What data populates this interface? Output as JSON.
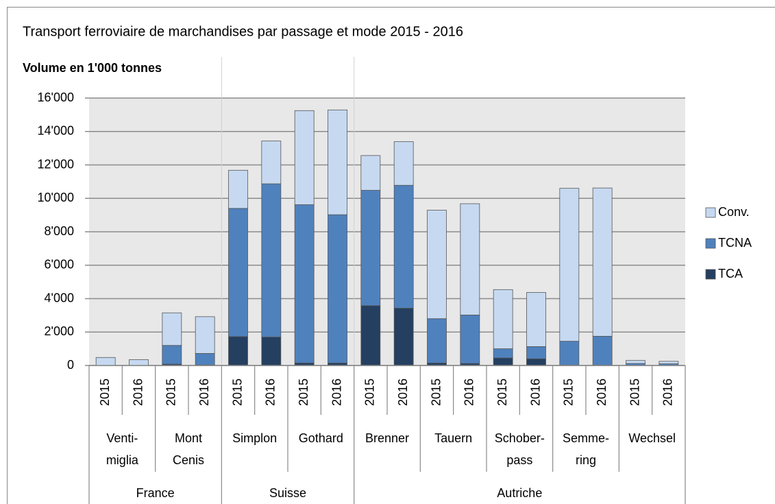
{
  "chart_data": {
    "type": "stacked_bar",
    "title": "Transport ferroviaire de marchandises par passage et mode 2015 - 2016",
    "subtitle": "Volume en 1'000 tonnes",
    "groups": [
      {
        "label": "France",
        "subgroups": [
          {
            "label": [
              "Venti-",
              "miglia"
            ],
            "categories": [
              "2015",
              "2016"
            ]
          },
          {
            "label": [
              "Mont",
              "Cenis"
            ],
            "categories": [
              "2015",
              "2016"
            ]
          }
        ]
      },
      {
        "label": "Suisse",
        "subgroups": [
          {
            "label": [
              "Simplon"
            ],
            "categories": [
              "2015",
              "2016"
            ]
          },
          {
            "label": [
              "Gothard"
            ],
            "categories": [
              "2015",
              "2016"
            ]
          }
        ]
      },
      {
        "label": "Autriche",
        "subgroups": [
          {
            "label": [
              "Brenner"
            ],
            "categories": [
              "2015",
              "2016"
            ]
          },
          {
            "label": [
              "Tauern"
            ],
            "categories": [
              "2015",
              "2016"
            ]
          },
          {
            "label": [
              "Schober-",
              "pass"
            ],
            "categories": [
              "2015",
              "2016"
            ]
          },
          {
            "label": [
              "Semme-",
              "ring"
            ],
            "categories": [
              "2015",
              "2016"
            ]
          },
          {
            "label": [
              "Wechsel"
            ],
            "categories": [
              "2015",
              "2016"
            ]
          }
        ]
      }
    ],
    "series": [
      {
        "name": "TCA",
        "color": "#243f60",
        "values": [
          0,
          0,
          80,
          30,
          1730,
          1700,
          150,
          150,
          3580,
          3430,
          150,
          120,
          450,
          400,
          20,
          20,
          0,
          0
        ]
      },
      {
        "name": "TCNA",
        "color": "#4f81bd",
        "values": [
          0,
          0,
          1120,
          690,
          7670,
          9170,
          9470,
          8870,
          6900,
          7350,
          2650,
          2900,
          550,
          730,
          1430,
          1730,
          120,
          100
        ]
      },
      {
        "name": "Conv.",
        "color": "#c6d9f1",
        "values": [
          480,
          350,
          1950,
          2200,
          2280,
          2560,
          5630,
          6270,
          2080,
          2610,
          6490,
          6660,
          3540,
          3240,
          9150,
          8870,
          180,
          150
        ]
      }
    ],
    "ylim": [
      0,
      16000
    ],
    "yticks": [
      0,
      {
        "value": 2000,
        "label": "2'000"
      },
      {
        "value": 4000,
        "label": "4'000"
      },
      {
        "value": 6000,
        "label": "6'000"
      },
      {
        "value": 8000,
        "label": "8'000"
      },
      {
        "value": 10000,
        "label": "10'000"
      },
      {
        "value": 12000,
        "label": "12'000"
      },
      {
        "value": 14000,
        "label": "14'000"
      },
      {
        "value": 16000,
        "label": "16'000"
      }
    ],
    "grid": true,
    "legend": "right"
  }
}
